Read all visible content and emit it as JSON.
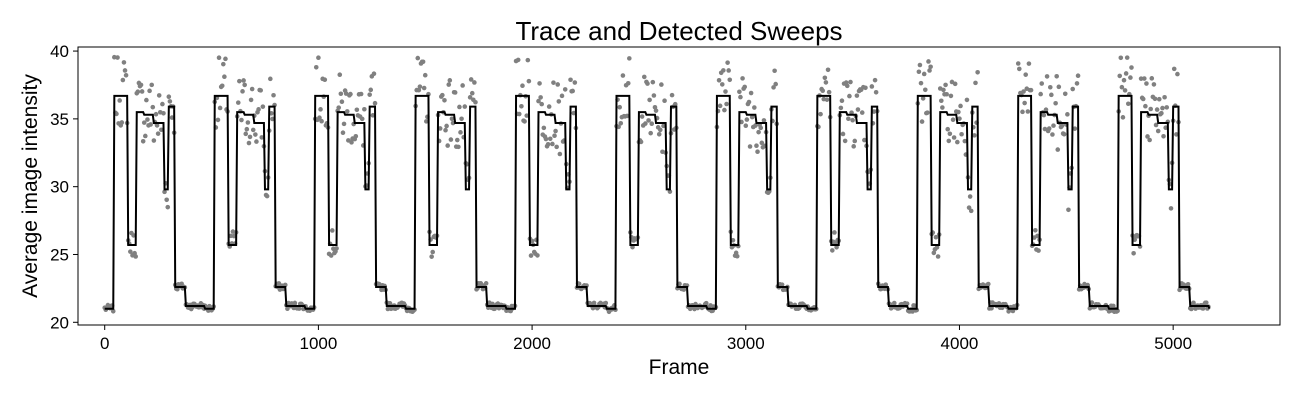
{
  "chart_data": {
    "type": "scatter",
    "title": "Trace and Detected Sweeps",
    "xlabel": "Frame",
    "ylabel": "Average image intensity",
    "xlim": [
      -125,
      5500
    ],
    "ylim": [
      19.8,
      40.3
    ],
    "x_ticks": [
      0,
      1000,
      2000,
      3000,
      4000,
      5000
    ],
    "y_ticks": [
      20,
      25,
      30,
      35,
      40
    ],
    "grid": false,
    "legend": "none",
    "colors": {
      "trace_points": "#808080",
      "sweep_line": "#000000"
    },
    "sweep_period_frames": 470,
    "sweep_count": 11,
    "sweep_levels": [
      {
        "start": 0,
        "end": 45,
        "value": 21.0
      },
      {
        "start": 45,
        "end": 110,
        "value": 36.7
      },
      {
        "start": 110,
        "end": 150,
        "value": 25.7
      },
      {
        "start": 150,
        "end": 185,
        "value": 35.5
      },
      {
        "start": 185,
        "end": 230,
        "value": 35.3
      },
      {
        "start": 230,
        "end": 280,
        "value": 34.7
      },
      {
        "start": 280,
        "end": 300,
        "value": 29.8
      },
      {
        "start": 300,
        "end": 330,
        "value": 35.9
      },
      {
        "start": 330,
        "end": 380,
        "value": 22.6
      },
      {
        "start": 380,
        "end": 470,
        "value": 21.2
      }
    ],
    "series": [
      {
        "values_desc": "raw trace samples"
      },
      {
        "values_desc": "detected sweep trace"
      }
    ]
  }
}
